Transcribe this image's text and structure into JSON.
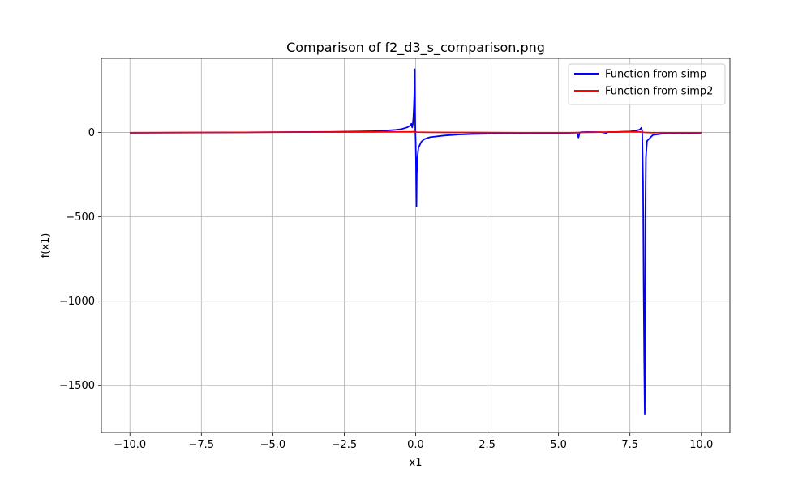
{
  "chart_data": {
    "type": "line",
    "title": "Comparison of f2_d3_s_comparison.png",
    "xlabel": "x1",
    "ylabel": "f(x1)",
    "xlim": [
      -11,
      11
    ],
    "ylim": [
      -1780,
      440
    ],
    "xticks": [
      {
        "value": -10,
        "label": "−10.0"
      },
      {
        "value": -7.5,
        "label": "−7.5"
      },
      {
        "value": -5,
        "label": "−5.0"
      },
      {
        "value": -2.5,
        "label": "−2.5"
      },
      {
        "value": 0,
        "label": "0.0"
      },
      {
        "value": 2.5,
        "label": "2.5"
      },
      {
        "value": 5,
        "label": "5.0"
      },
      {
        "value": 7.5,
        "label": "7.5"
      },
      {
        "value": 10,
        "label": "10.0"
      }
    ],
    "yticks": [
      {
        "value": 0,
        "label": "0"
      },
      {
        "value": -500,
        "label": "−500"
      },
      {
        "value": -1000,
        "label": "−1000"
      },
      {
        "value": -1500,
        "label": "−1500"
      }
    ],
    "grid": true,
    "legend_position": "top-right",
    "series": [
      {
        "name": "Function from simp",
        "color": "#0000ff",
        "points": [
          [
            -10,
            -2
          ],
          [
            -9,
            -1.5
          ],
          [
            -8,
            -1
          ],
          [
            -7,
            0
          ],
          [
            -6,
            1
          ],
          [
            -5,
            2
          ],
          [
            -4,
            3
          ],
          [
            -3,
            4
          ],
          [
            -2.5,
            5
          ],
          [
            -2,
            6
          ],
          [
            -1.5,
            8
          ],
          [
            -1,
            12
          ],
          [
            -0.7,
            16
          ],
          [
            -0.5,
            20
          ],
          [
            -0.3,
            30
          ],
          [
            -0.2,
            40
          ],
          [
            -0.15,
            52
          ],
          [
            -0.12,
            30
          ],
          [
            -0.1,
            50
          ],
          [
            -0.08,
            90
          ],
          [
            -0.06,
            160
          ],
          [
            -0.04,
            260
          ],
          [
            -0.03,
            375
          ],
          [
            -0.02,
            120
          ],
          [
            -0.01,
            0
          ],
          [
            0.0,
            -50
          ],
          [
            0.01,
            -150
          ],
          [
            0.02,
            -300
          ],
          [
            0.03,
            -440
          ],
          [
            0.04,
            -250
          ],
          [
            0.06,
            -150
          ],
          [
            0.1,
            -90
          ],
          [
            0.2,
            -55
          ],
          [
            0.3,
            -40
          ],
          [
            0.5,
            -28
          ],
          [
            1,
            -18
          ],
          [
            1.5,
            -12
          ],
          [
            2,
            -9
          ],
          [
            3,
            -6
          ],
          [
            4,
            -4
          ],
          [
            5,
            -3
          ],
          [
            5.5,
            -2
          ],
          [
            5.65,
            -1
          ],
          [
            5.7,
            -30
          ],
          [
            5.74,
            0
          ],
          [
            5.8,
            2
          ],
          [
            6,
            3
          ],
          [
            6.5,
            2
          ],
          [
            6.68,
            -3
          ],
          [
            6.72,
            2
          ],
          [
            7,
            3
          ],
          [
            7.5,
            6
          ],
          [
            7.7,
            10
          ],
          [
            7.85,
            18
          ],
          [
            7.9,
            28
          ],
          [
            7.93,
            10
          ],
          [
            7.96,
            -300
          ],
          [
            7.98,
            -900
          ],
          [
            8.0,
            -1350
          ],
          [
            8.02,
            -1670
          ],
          [
            8.04,
            -500
          ],
          [
            8.06,
            -150
          ],
          [
            8.1,
            -50
          ],
          [
            8.3,
            -15
          ],
          [
            8.6,
            -8
          ],
          [
            9,
            -5
          ],
          [
            10,
            -2
          ]
        ]
      },
      {
        "name": "Function from simp2",
        "color": "#ff0000",
        "points": [
          [
            -10,
            -1
          ],
          [
            -8,
            0
          ],
          [
            -6,
            1
          ],
          [
            -4,
            2
          ],
          [
            -2,
            3
          ],
          [
            -1,
            4
          ],
          [
            -0.2,
            4
          ],
          [
            -0.05,
            5
          ],
          [
            0,
            3
          ],
          [
            0.05,
            2
          ],
          [
            0.5,
            1
          ],
          [
            2,
            0
          ],
          [
            4,
            -1
          ],
          [
            5.5,
            -1
          ],
          [
            6,
            1
          ],
          [
            6.5,
            2
          ],
          [
            7,
            3
          ],
          [
            7.5,
            4
          ],
          [
            7.8,
            4
          ],
          [
            8,
            1
          ],
          [
            8.2,
            -1
          ],
          [
            9,
            -1
          ],
          [
            10,
            -1
          ]
        ]
      }
    ]
  }
}
